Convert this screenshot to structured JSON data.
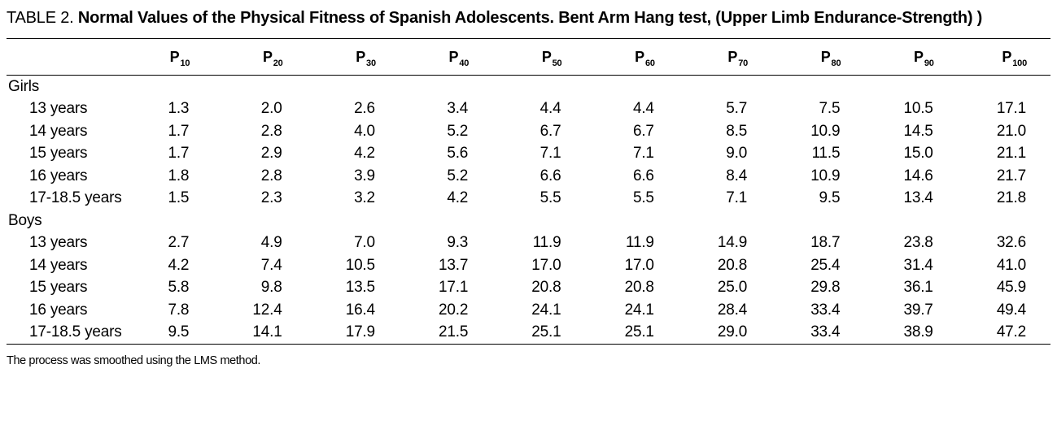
{
  "caption": {
    "label": "TABLE 2.",
    "title": "Normal Values of the Physical Fitness of Spanish Adolescents. Bent Arm Hang test, (Upper Limb Endurance-Strength) )"
  },
  "table": {
    "columns": [
      {
        "base": "P",
        "sub": "10"
      },
      {
        "base": "P",
        "sub": "20"
      },
      {
        "base": "P",
        "sub": "30"
      },
      {
        "base": "P",
        "sub": "40"
      },
      {
        "base": "P",
        "sub": "50"
      },
      {
        "base": "P",
        "sub": "60"
      },
      {
        "base": "P",
        "sub": "70"
      },
      {
        "base": "P",
        "sub": "80"
      },
      {
        "base": "P",
        "sub": "90"
      },
      {
        "base": "P",
        "sub": "100"
      }
    ],
    "groups": [
      {
        "name": "Girls",
        "rows": [
          {
            "label": "13 years",
            "values": [
              "1.3",
              "2.0",
              "2.6",
              "3.4",
              "4.4",
              "4.4",
              "5.7",
              "7.5",
              "10.5",
              "17.1"
            ]
          },
          {
            "label": "14 years",
            "values": [
              "1.7",
              "2.8",
              "4.0",
              "5.2",
              "6.7",
              "6.7",
              "8.5",
              "10.9",
              "14.5",
              "21.0"
            ]
          },
          {
            "label": "15 years",
            "values": [
              "1.7",
              "2.9",
              "4.2",
              "5.6",
              "7.1",
              "7.1",
              "9.0",
              "11.5",
              "15.0",
              "21.1"
            ]
          },
          {
            "label": "16 years",
            "values": [
              "1.8",
              "2.8",
              "3.9",
              "5.2",
              "6.6",
              "6.6",
              "8.4",
              "10.9",
              "14.6",
              "21.7"
            ]
          },
          {
            "label": "17-18.5 years",
            "values": [
              "1.5",
              "2.3",
              "3.2",
              "4.2",
              "5.5",
              "5.5",
              "7.1",
              "9.5",
              "13.4",
              "21.8"
            ]
          }
        ]
      },
      {
        "name": "Boys",
        "rows": [
          {
            "label": "13 years",
            "values": [
              "2.7",
              "4.9",
              "7.0",
              "9.3",
              "11.9",
              "11.9",
              "14.9",
              "18.7",
              "23.8",
              "32.6"
            ]
          },
          {
            "label": "14 years",
            "values": [
              "4.2",
              "7.4",
              "10.5",
              "13.7",
              "17.0",
              "17.0",
              "20.8",
              "25.4",
              "31.4",
              "41.0"
            ]
          },
          {
            "label": "15 years",
            "values": [
              "5.8",
              "9.8",
              "13.5",
              "17.1",
              "20.8",
              "20.8",
              "25.0",
              "29.8",
              "36.1",
              "45.9"
            ]
          },
          {
            "label": "16 years",
            "values": [
              "7.8",
              "12.4",
              "16.4",
              "20.2",
              "24.1",
              "24.1",
              "28.4",
              "33.4",
              "39.7",
              "49.4"
            ]
          },
          {
            "label": "17-18.5 years",
            "values": [
              "9.5",
              "14.1",
              "17.9",
              "21.5",
              "25.1",
              "25.1",
              "29.0",
              "33.4",
              "38.9",
              "47.2"
            ]
          }
        ]
      }
    ],
    "footnote": "The process was smoothed using the LMS method."
  }
}
